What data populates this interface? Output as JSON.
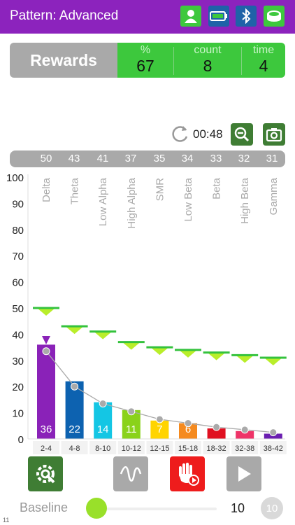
{
  "header": {
    "title": "Pattern: Advanced",
    "icons": [
      "user-icon",
      "battery-icon",
      "bluetooth-icon",
      "headband-icon"
    ]
  },
  "rewards": {
    "label": "Rewards",
    "cells": [
      {
        "label": "%",
        "value": "67"
      },
      {
        "label": "count",
        "value": "8"
      },
      {
        "label": "time",
        "value": "4"
      }
    ]
  },
  "timer": {
    "value": "00:48"
  },
  "peak_values": [
    "50",
    "43",
    "41",
    "37",
    "35",
    "34",
    "33",
    "32",
    "31"
  ],
  "colors": {
    "header": "#8c23bd",
    "reward_green": "#3dc83d",
    "gray": "#a9a9a9",
    "dark_green": "#3f7d34",
    "red": "#ee1c1c"
  },
  "chart_data": {
    "type": "bar",
    "y_ticks": [
      "100",
      "90",
      "80",
      "70",
      "60",
      "50",
      "40",
      "30",
      "20",
      "10",
      "0"
    ],
    "ylim": [
      0,
      100
    ],
    "grid": false,
    "bands": [
      "Delta",
      "Theta",
      "Low Alpha",
      "High Alpha",
      "SMR",
      "Low Beta",
      "Beta",
      "High Beta",
      "Gamma"
    ],
    "ranges": [
      "2-4",
      "4-8",
      "8-10",
      "10-12",
      "12-15",
      "15-18",
      "18-32",
      "32-38",
      "38-42"
    ],
    "values": [
      36,
      22,
      14,
      11,
      7,
      6,
      4,
      3,
      2
    ],
    "value_labels": [
      "36",
      "22",
      "14",
      "11",
      "7",
      "6",
      "",
      "",
      ""
    ],
    "bar_colors": [
      "#8a22b8",
      "#0d62b0",
      "#14c6e4",
      "#8ad21a",
      "#ffd400",
      "#f58a1e",
      "#e01020",
      "#ee3468",
      "#6a1eb0"
    ],
    "trend_line": [
      33.5,
      20,
      13.5,
      10.5,
      7.5,
      6,
      4.5,
      3.5,
      2.5
    ],
    "thresholds": [
      50,
      43,
      41,
      37,
      35,
      34,
      33,
      32,
      31
    ]
  },
  "baseline": {
    "label": "Baseline",
    "value": "10",
    "badge": "10",
    "level": 0
  },
  "corner_text": "11"
}
